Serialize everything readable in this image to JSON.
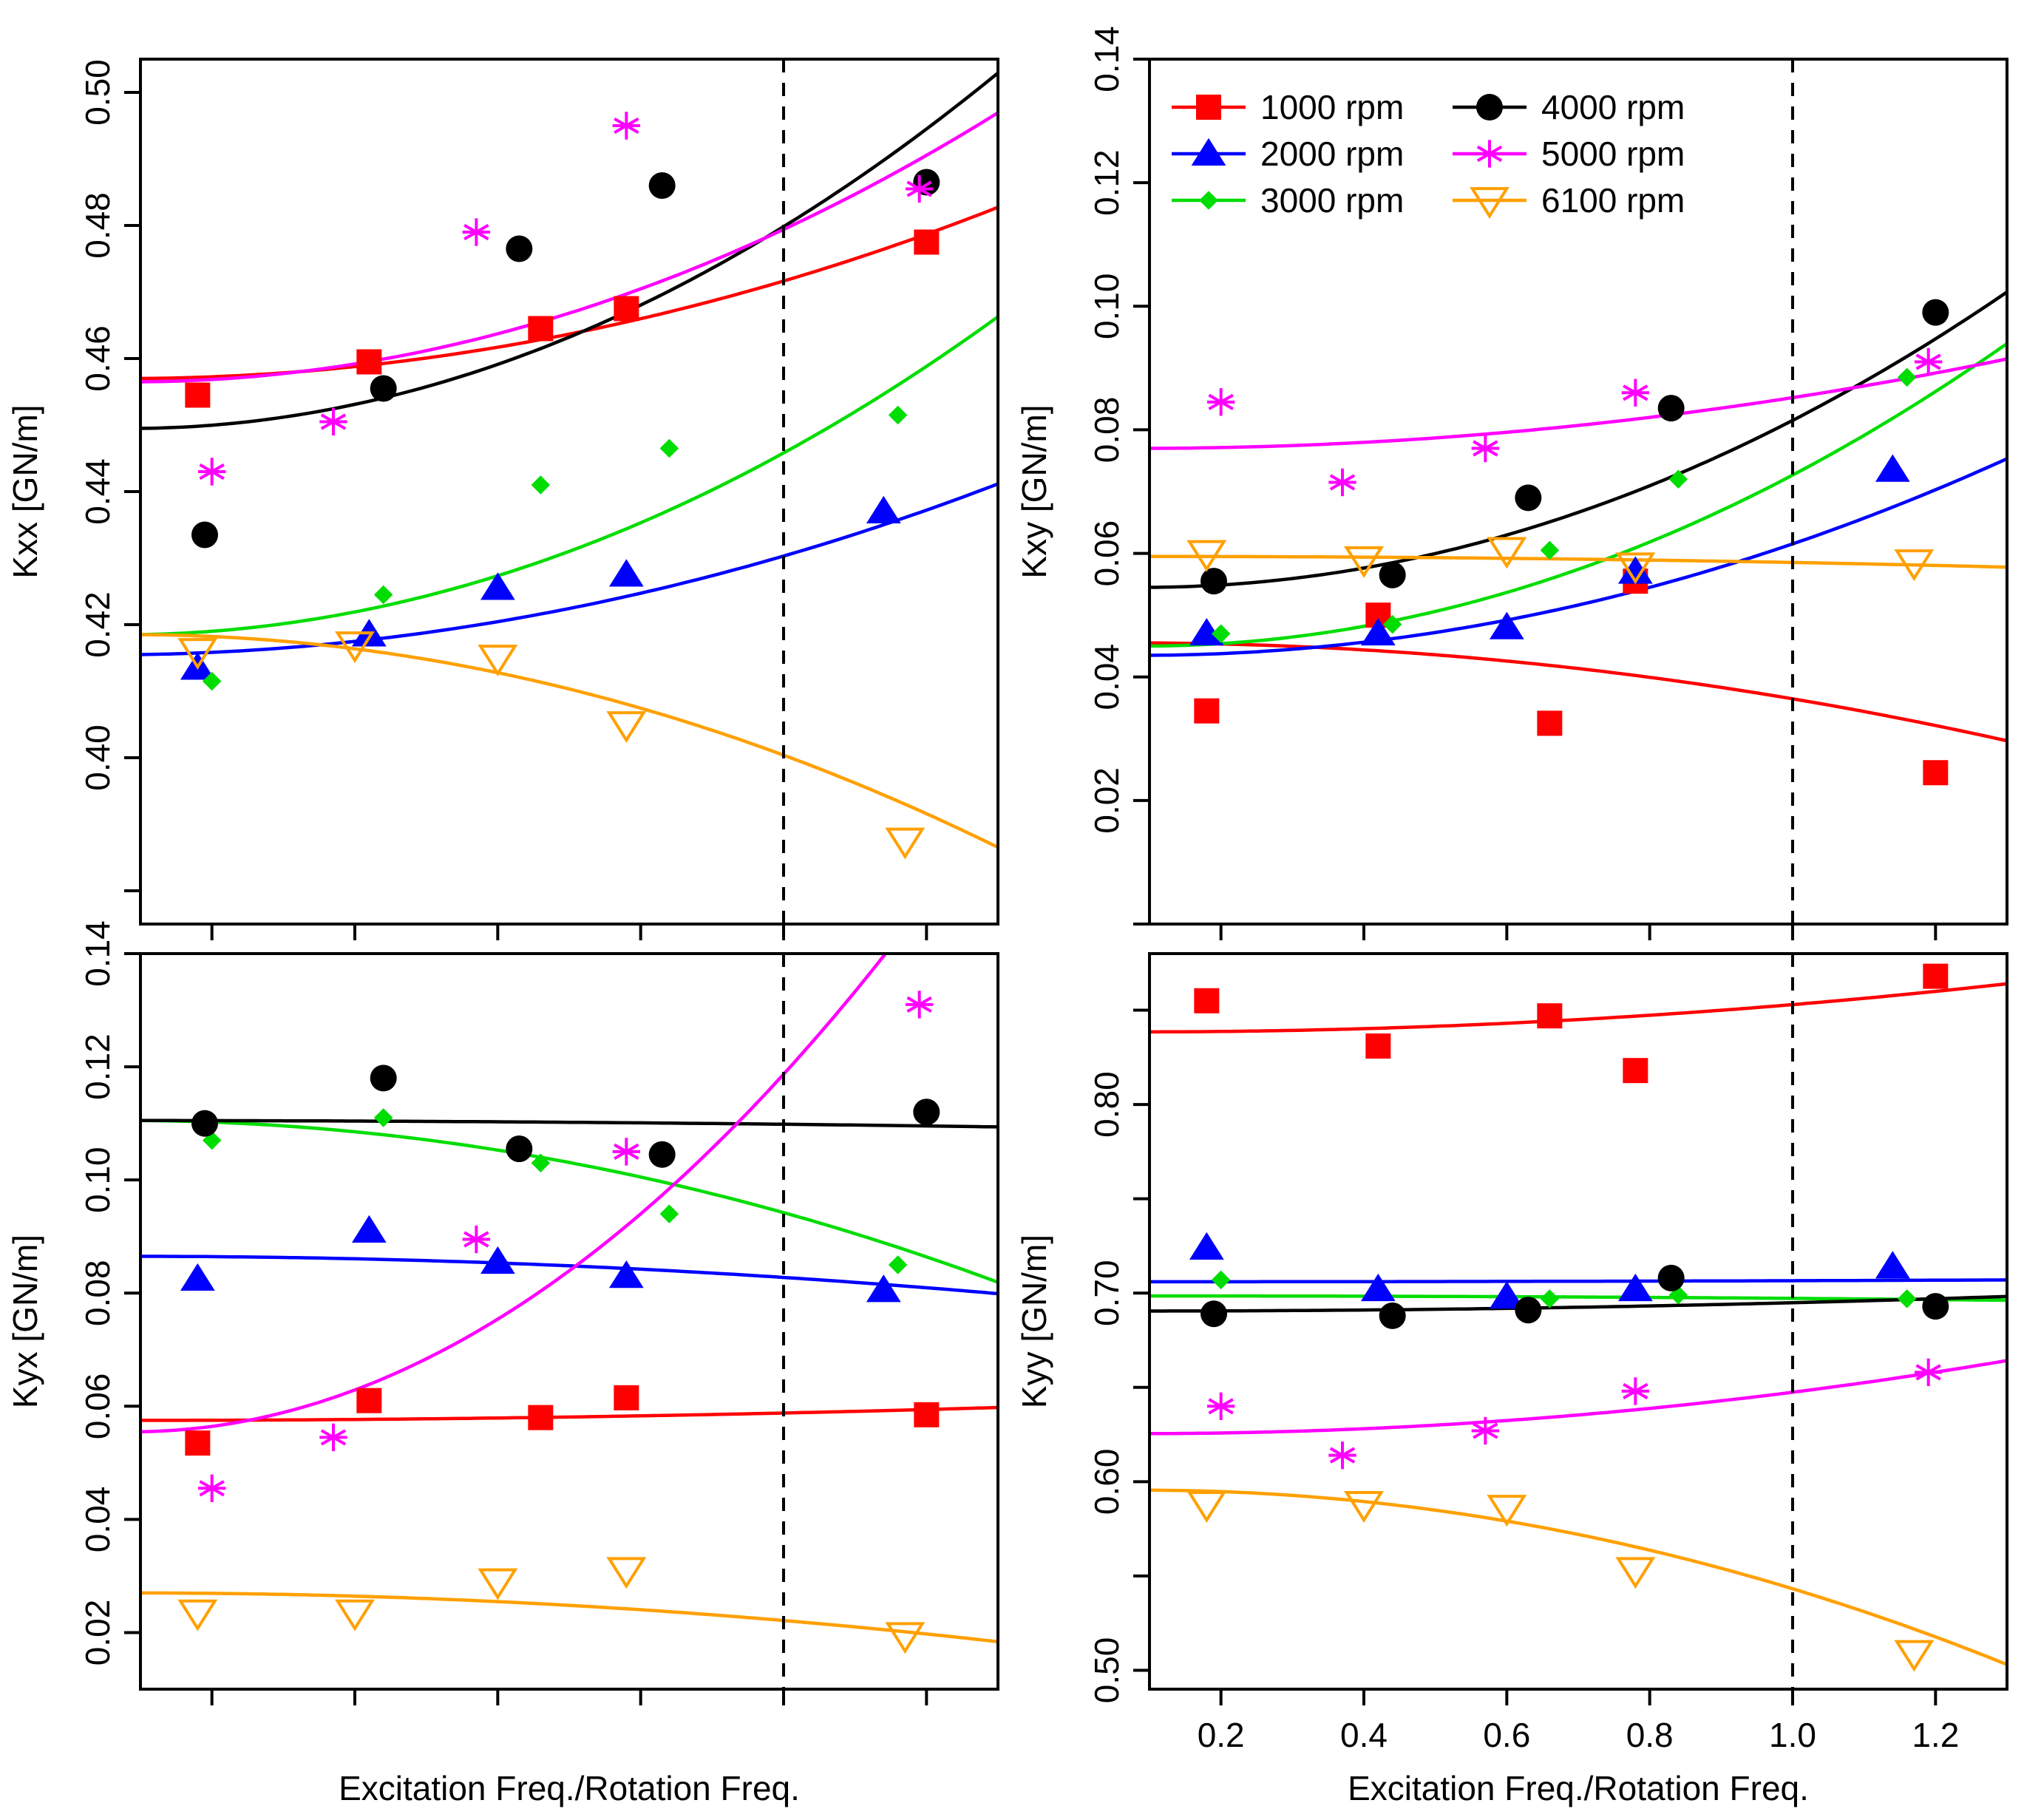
{
  "figure": {
    "xlabel": "Excitation Freq./Rotation Freq.",
    "legend": [
      {
        "label": "1000 rpm",
        "color": "#ff0000",
        "marker": "square"
      },
      {
        "label": "4000 rpm",
        "color": "#000000",
        "marker": "circle"
      },
      {
        "label": "2000 rpm",
        "color": "#0000ff",
        "marker": "triangle-up"
      },
      {
        "label": "5000 rpm",
        "color": "#ff00ff",
        "marker": "asterisk"
      },
      {
        "label": "3000 rpm",
        "color": "#00dd00",
        "marker": "diamond"
      },
      {
        "label": "6100 rpm",
        "color": "#ffa000",
        "marker": "triangle-down-open"
      }
    ]
  },
  "chart_data": [
    {
      "type": "scatter",
      "ylabel": "Kxx [GN/m]",
      "xlim": [
        0.1,
        1.3
      ],
      "ylim": [
        0.375,
        0.505
      ],
      "xticks": [
        0.2,
        0.4,
        0.6,
        0.8,
        1.0,
        1.2
      ],
      "yticks": [
        0.38,
        0.4,
        0.42,
        0.44,
        0.46,
        0.48,
        0.5
      ],
      "ytick_labels": [
        "",
        "0.40",
        "0.42",
        "0.44",
        "0.46",
        "0.48",
        "0.50"
      ],
      "show_xtick_labels": false,
      "vline": 1.0,
      "series": [
        {
          "name": "1000 rpm",
          "points": [
            [
              0.18,
              0.4545
            ],
            [
              0.42,
              0.4595
            ],
            [
              0.66,
              0.4645
            ],
            [
              0.78,
              0.4675
            ],
            [
              1.2,
              0.4775
            ]
          ],
          "fit": [
            0.457,
            0.0008,
            0.0172
          ]
        },
        {
          "name": "2000 rpm",
          "points": [
            [
              0.18,
              0.4135
            ],
            [
              0.42,
              0.4185
            ],
            [
              0.6,
              0.4255
            ],
            [
              0.78,
              0.4275
            ],
            [
              1.14,
              0.437
            ]
          ],
          "fit": [
            0.4155,
            0.0017,
            0.0164
          ]
        },
        {
          "name": "3000 rpm",
          "points": [
            [
              0.2,
              0.4115
            ],
            [
              0.44,
              0.4245
            ],
            [
              0.66,
              0.441
            ],
            [
              0.84,
              0.4465
            ],
            [
              1.16,
              0.4515
            ]
          ],
          "fit": [
            0.4185,
            0.0019,
            0.0316
          ]
        },
        {
          "name": "4000 rpm",
          "points": [
            [
              0.19,
              0.4335
            ],
            [
              0.44,
              0.4555
            ],
            [
              0.63,
              0.4765
            ],
            [
              0.83,
              0.486
            ],
            [
              1.2,
              0.4865
            ]
          ],
          "fit": [
            0.4495,
            0.0012,
            0.0361
          ]
        },
        {
          "name": "5000 rpm",
          "points": [
            [
              0.2,
              0.443
            ],
            [
              0.37,
              0.4505
            ],
            [
              0.57,
              0.479
            ],
            [
              0.78,
              0.495
            ],
            [
              1.19,
              0.4855
            ]
          ],
          "fit": [
            0.4565,
            0.0007,
            0.0275
          ]
        },
        {
          "name": "6100 rpm",
          "points": [
            [
              0.18,
              0.416
            ],
            [
              0.4,
              0.417
            ],
            [
              0.6,
              0.415
            ],
            [
              0.78,
              0.405
            ],
            [
              1.17,
              0.3875
            ]
          ],
          "fit": [
            0.4185,
            -0.0006,
            -0.0217
          ]
        }
      ]
    },
    {
      "type": "scatter",
      "ylabel": "Kxy [GN/m]",
      "xlim": [
        0.1,
        1.3
      ],
      "ylim": [
        0.0,
        0.14
      ],
      "xticks": [
        0.2,
        0.4,
        0.6,
        0.8,
        1.0,
        1.2
      ],
      "yticks": [
        0.0,
        0.02,
        0.04,
        0.06,
        0.08,
        0.1,
        0.12,
        0.14
      ],
      "ytick_labels": [
        "",
        "0.02",
        "0.04",
        "0.06",
        "0.08",
        "0.10",
        "0.12",
        "0.14"
      ],
      "show_xtick_labels": false,
      "vline": 1.0,
      "series": [
        {
          "name": "1000 rpm",
          "points": [
            [
              0.18,
              0.0345
            ],
            [
              0.42,
              0.05
            ],
            [
              0.66,
              0.0325
            ],
            [
              0.78,
              0.0555
            ],
            [
              1.2,
              0.0245
            ]
          ],
          "fit": [
            0.0455,
            -0.0006,
            -0.0105
          ]
        },
        {
          "name": "2000 rpm",
          "points": [
            [
              0.18,
              0.047
            ],
            [
              0.42,
              0.047
            ],
            [
              0.6,
              0.048
            ],
            [
              0.78,
              0.057
            ],
            [
              1.14,
              0.0735
            ]
          ],
          "fit": [
            0.0435,
            0.0006,
            0.0216
          ]
        },
        {
          "name": "3000 rpm",
          "points": [
            [
              0.2,
              0.047
            ],
            [
              0.44,
              0.0485
            ],
            [
              0.66,
              0.0605
            ],
            [
              0.84,
              0.072
            ],
            [
              1.16,
              0.0885
            ]
          ],
          "fit": [
            0.045,
            0.0006,
            0.0335
          ]
        },
        {
          "name": "4000 rpm",
          "points": [
            [
              0.19,
              0.0555
            ],
            [
              0.44,
              0.0565
            ],
            [
              0.63,
              0.069
            ],
            [
              0.83,
              0.0835
            ],
            [
              1.2,
              0.099
            ]
          ],
          "fit": [
            0.0545,
            0.0006,
            0.0327
          ]
        },
        {
          "name": "5000 rpm",
          "points": [
            [
              0.2,
              0.0845
            ],
            [
              0.37,
              0.0715
            ],
            [
              0.57,
              0.077
            ],
            [
              0.78,
              0.086
            ],
            [
              1.19,
              0.091
            ]
          ],
          "fit": [
            0.077,
            0.0003,
            0.0098
          ]
        },
        {
          "name": "6100 rpm",
          "points": [
            [
              0.18,
              0.06
            ],
            [
              0.4,
              0.059
            ],
            [
              0.6,
              0.0605
            ],
            [
              0.78,
              0.058
            ],
            [
              1.17,
              0.0585
            ]
          ],
          "fit": [
            0.0595,
            0.0,
            -0.0012
          ]
        }
      ]
    },
    {
      "type": "scatter",
      "ylabel": "Kyx [GN/m]",
      "xlim": [
        0.1,
        1.3
      ],
      "ylim": [
        0.01,
        0.14
      ],
      "xticks": [
        0.2,
        0.4,
        0.6,
        0.8,
        1.0,
        1.2
      ],
      "yticks": [
        0.02,
        0.04,
        0.06,
        0.08,
        0.1,
        0.12,
        0.14
      ],
      "ytick_labels": [
        "0.02",
        "0.04",
        "0.06",
        "0.08",
        "0.10",
        "0.12",
        "0.14"
      ],
      "show_xtick_labels": false,
      "vline": 1.0,
      "series": [
        {
          "name": "1000 rpm",
          "points": [
            [
              0.18,
              0.0535
            ],
            [
              0.42,
              0.061
            ],
            [
              0.66,
              0.058
            ],
            [
              0.78,
              0.0615
            ],
            [
              1.2,
              0.0585
            ]
          ],
          "fit": [
            0.0575,
            0.0001,
            0.0015
          ]
        },
        {
          "name": "2000 rpm",
          "points": [
            [
              0.18,
              0.0825
            ],
            [
              0.42,
              0.091
            ],
            [
              0.6,
              0.0855
            ],
            [
              0.78,
              0.083
            ],
            [
              1.14,
              0.0805
            ]
          ],
          "fit": [
            0.0865,
            -0.0001,
            -0.0045
          ]
        },
        {
          "name": "3000 rpm",
          "points": [
            [
              0.2,
              0.107
            ],
            [
              0.44,
              0.111
            ],
            [
              0.66,
              0.103
            ],
            [
              0.84,
              0.094
            ],
            [
              1.16,
              0.085
            ]
          ],
          "fit": [
            0.1105,
            -0.0009,
            -0.0191
          ]
        },
        {
          "name": "4000 rpm",
          "points": [
            [
              0.19,
              0.11
            ],
            [
              0.44,
              0.118
            ],
            [
              0.63,
              0.1055
            ],
            [
              0.83,
              0.1045
            ],
            [
              1.2,
              0.112
            ]
          ],
          "fit": [
            0.1105,
            -0.0001,
            -0.0007
          ]
        },
        {
          "name": "5000 rpm",
          "points": [
            [
              0.2,
              0.0455
            ],
            [
              0.37,
              0.0545
            ],
            [
              0.57,
              0.0895
            ],
            [
              0.78,
              0.105
            ],
            [
              1.19,
              0.131
            ]
          ],
          "fit": [
            0.0555,
            0.0018,
            0.076
          ]
        },
        {
          "name": "6100 rpm",
          "points": [
            [
              0.18,
              0.0235
            ],
            [
              0.4,
              0.0235
            ],
            [
              0.6,
              0.029
            ],
            [
              0.78,
              0.031
            ],
            [
              1.17,
              0.0195
            ]
          ],
          "fit": [
            0.027,
            -0.0001,
            -0.0059
          ]
        }
      ]
    },
    {
      "type": "scatter",
      "ylabel": "Kyy [GN/m]",
      "xlim": [
        0.1,
        1.3
      ],
      "ylim": [
        0.49,
        0.88
      ],
      "xticks": [
        0.2,
        0.4,
        0.6,
        0.8,
        1.0,
        1.2
      ],
      "yticks": [
        0.5,
        0.55,
        0.6,
        0.65,
        0.7,
        0.75,
        0.8,
        0.85
      ],
      "ytick_labels": [
        "0.50",
        "",
        "0.60",
        "",
        "0.70",
        "",
        "0.80",
        ""
      ],
      "show_xtick_labels": true,
      "vline": 1.0,
      "series": [
        {
          "name": "1000 rpm",
          "points": [
            [
              0.18,
              0.855
            ],
            [
              0.42,
              0.831
            ],
            [
              0.66,
              0.847
            ],
            [
              0.78,
              0.818
            ],
            [
              1.2,
              0.868
            ]
          ],
          "fit": [
            0.8385,
            0.0005,
            0.0173
          ]
        },
        {
          "name": "2000 rpm",
          "points": [
            [
              0.18,
              0.724
            ],
            [
              0.42,
              0.702
            ],
            [
              0.6,
              0.698
            ],
            [
              0.78,
              0.702
            ],
            [
              1.14,
              0.714
            ]
          ],
          "fit": [
            0.706,
            0.0001,
            0.0006
          ]
        },
        {
          "name": "3000 rpm",
          "points": [
            [
              0.2,
              0.707
            ],
            [
              0.44,
              0.686
            ],
            [
              0.66,
              0.697
            ],
            [
              0.84,
              0.699
            ],
            [
              1.16,
              0.697
            ]
          ],
          "fit": [
            0.6985,
            0.0,
            -0.0016
          ]
        },
        {
          "name": "4000 rpm",
          "points": [
            [
              0.19,
              0.689
            ],
            [
              0.44,
              0.688
            ],
            [
              0.63,
              0.691
            ],
            [
              0.83,
              0.708
            ],
            [
              1.2,
              0.693
            ]
          ],
          "fit": [
            0.6905,
            0.0002,
            0.0052
          ]
        },
        {
          "name": "5000 rpm",
          "points": [
            [
              0.2,
              0.64
            ],
            [
              0.37,
              0.614
            ],
            [
              0.57,
              0.627
            ],
            [
              0.78,
              0.648
            ],
            [
              1.19,
              0.658
            ]
          ],
          "fit": [
            0.6255,
            0.0007,
            0.0263
          ]
        },
        {
          "name": "6100 rpm",
          "points": [
            [
              0.18,
              0.588
            ],
            [
              0.4,
              0.588
            ],
            [
              0.6,
              0.586
            ],
            [
              0.78,
              0.553
            ],
            [
              1.17,
              0.509
            ]
          ],
          "fit": [
            0.5955,
            -0.0012,
            -0.0632
          ]
        }
      ]
    }
  ]
}
